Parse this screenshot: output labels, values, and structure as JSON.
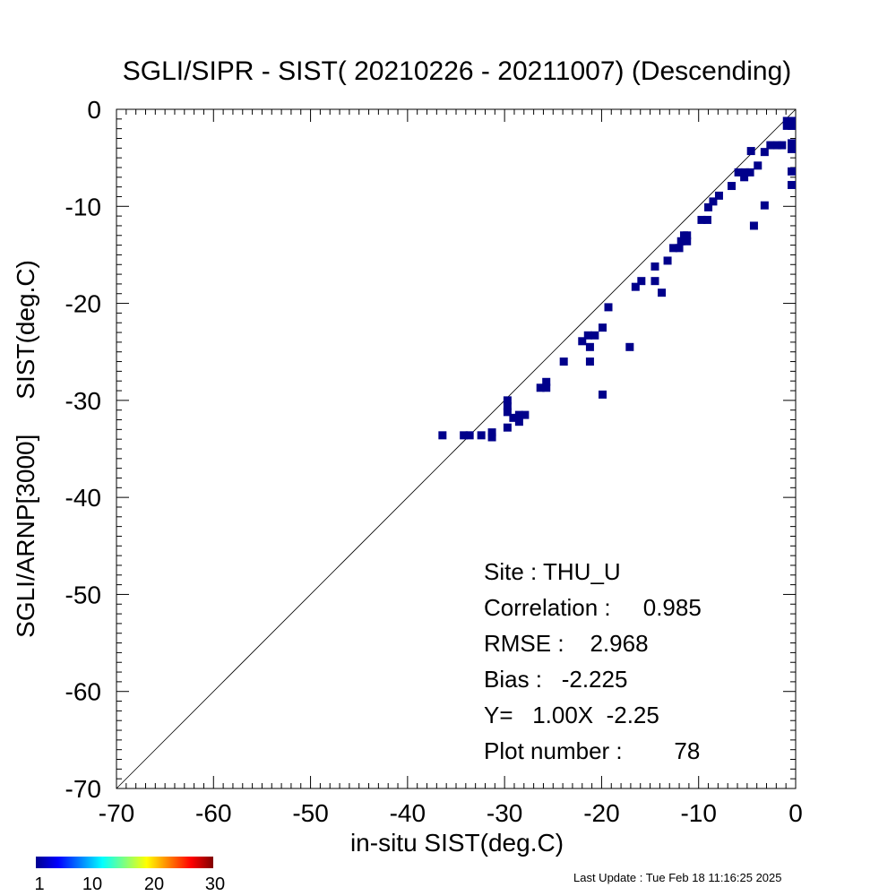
{
  "chart_data": {
    "type": "scatter",
    "title": "SGLI/SIPR - SIST( 20210226 - 20211007) (Descending)",
    "xlabel": "in-situ SIST(deg.C)",
    "ylabel": "SGLI/ARNP[3000]     SIST(deg.C)",
    "xlim": [
      -70,
      0
    ],
    "ylim": [
      -70,
      0
    ],
    "xticks": [
      -70,
      -60,
      -50,
      -40,
      -30,
      -20,
      -10,
      0
    ],
    "yticks": [
      -70,
      -60,
      -50,
      -40,
      -30,
      -20,
      -10,
      0
    ],
    "xtick_labels": [
      "-70",
      "-60",
      "-50",
      "-40",
      "-30",
      "-20",
      "-10",
      "0"
    ],
    "ytick_labels": [
      "-70",
      "-60",
      "-50",
      "-40",
      "-30",
      "-20",
      "-10",
      "0"
    ],
    "one_to_one_line": true,
    "grid": false,
    "point_color": "#00008b",
    "points": [
      {
        "x": -36.4,
        "y": -33.6
      },
      {
        "x": -34.2,
        "y": -33.6
      },
      {
        "x": -33.6,
        "y": -33.6
      },
      {
        "x": -32.4,
        "y": -33.6
      },
      {
        "x": -31.3,
        "y": -33.3
      },
      {
        "x": -31.3,
        "y": -33.8
      },
      {
        "x": -29.7,
        "y": -32.8
      },
      {
        "x": -29.7,
        "y": -30.0
      },
      {
        "x": -29.7,
        "y": -30.6
      },
      {
        "x": -29.7,
        "y": -31.2
      },
      {
        "x": -29.1,
        "y": -31.8
      },
      {
        "x": -28.5,
        "y": -32.2
      },
      {
        "x": -28.5,
        "y": -31.5
      },
      {
        "x": -27.9,
        "y": -31.5
      },
      {
        "x": -26.3,
        "y": -28.7
      },
      {
        "x": -25.7,
        "y": -28.7
      },
      {
        "x": -25.7,
        "y": -28.1
      },
      {
        "x": -23.9,
        "y": -26.0
      },
      {
        "x": -22.0,
        "y": -23.9
      },
      {
        "x": -21.4,
        "y": -23.3
      },
      {
        "x": -20.7,
        "y": -23.3
      },
      {
        "x": -21.2,
        "y": -24.5
      },
      {
        "x": -21.2,
        "y": -26.0
      },
      {
        "x": -19.9,
        "y": -22.5
      },
      {
        "x": -19.9,
        "y": -29.4
      },
      {
        "x": -19.3,
        "y": -20.4
      },
      {
        "x": -17.1,
        "y": -24.5
      },
      {
        "x": -16.5,
        "y": -18.3
      },
      {
        "x": -15.9,
        "y": -17.7
      },
      {
        "x": -14.5,
        "y": -17.7
      },
      {
        "x": -14.5,
        "y": -16.2
      },
      {
        "x": -13.8,
        "y": -18.9
      },
      {
        "x": -13.2,
        "y": -15.6
      },
      {
        "x": -12.6,
        "y": -14.3
      },
      {
        "x": -12.0,
        "y": -14.3
      },
      {
        "x": -11.8,
        "y": -13.6
      },
      {
        "x": -11.5,
        "y": -13.0
      },
      {
        "x": -11.2,
        "y": -13.0
      },
      {
        "x": -11.2,
        "y": -13.6
      },
      {
        "x": -9.7,
        "y": -11.4
      },
      {
        "x": -9.1,
        "y": -11.4
      },
      {
        "x": -9.0,
        "y": -10.1
      },
      {
        "x": -8.5,
        "y": -9.5
      },
      {
        "x": -7.9,
        "y": -8.9
      },
      {
        "x": -6.6,
        "y": -7.9
      },
      {
        "x": -5.9,
        "y": -6.5
      },
      {
        "x": -5.2,
        "y": -6.5
      },
      {
        "x": -5.3,
        "y": -7.0
      },
      {
        "x": -4.7,
        "y": -6.5
      },
      {
        "x": -4.6,
        "y": -4.3
      },
      {
        "x": -4.3,
        "y": -12.0
      },
      {
        "x": -3.9,
        "y": -5.8
      },
      {
        "x": -3.2,
        "y": -9.9
      },
      {
        "x": -3.2,
        "y": -4.4
      },
      {
        "x": -2.6,
        "y": -3.7
      },
      {
        "x": -1.9,
        "y": -3.7
      },
      {
        "x": -1.4,
        "y": -3.7
      },
      {
        "x": -0.9,
        "y": -1.2
      },
      {
        "x": -0.4,
        "y": -1.2
      },
      {
        "x": -0.2,
        "y": -1.2
      },
      {
        "x": -0.9,
        "y": -1.7
      },
      {
        "x": -0.4,
        "y": -1.7
      },
      {
        "x": -0.2,
        "y": -1.7
      },
      {
        "x": -0.2,
        "y": -3.5
      },
      {
        "x": -0.2,
        "y": -4.1
      },
      {
        "x": -0.2,
        "y": -6.4
      },
      {
        "x": -0.2,
        "y": -7.8
      }
    ],
    "stats": [
      "Site : THU_U",
      "Correlation :     0.985",
      "RMSE :    2.968",
      "Bias :   -2.225",
      "Y=   1.00X  -2.25",
      "Plot number :        78"
    ],
    "colorbar": {
      "min": 1,
      "max": 30,
      "tick_labels": [
        "1",
        "10",
        "20",
        "30"
      ],
      "colormap": "jet"
    },
    "last_update": "Last Update : Tue Feb 18 11:16:25 2025"
  }
}
